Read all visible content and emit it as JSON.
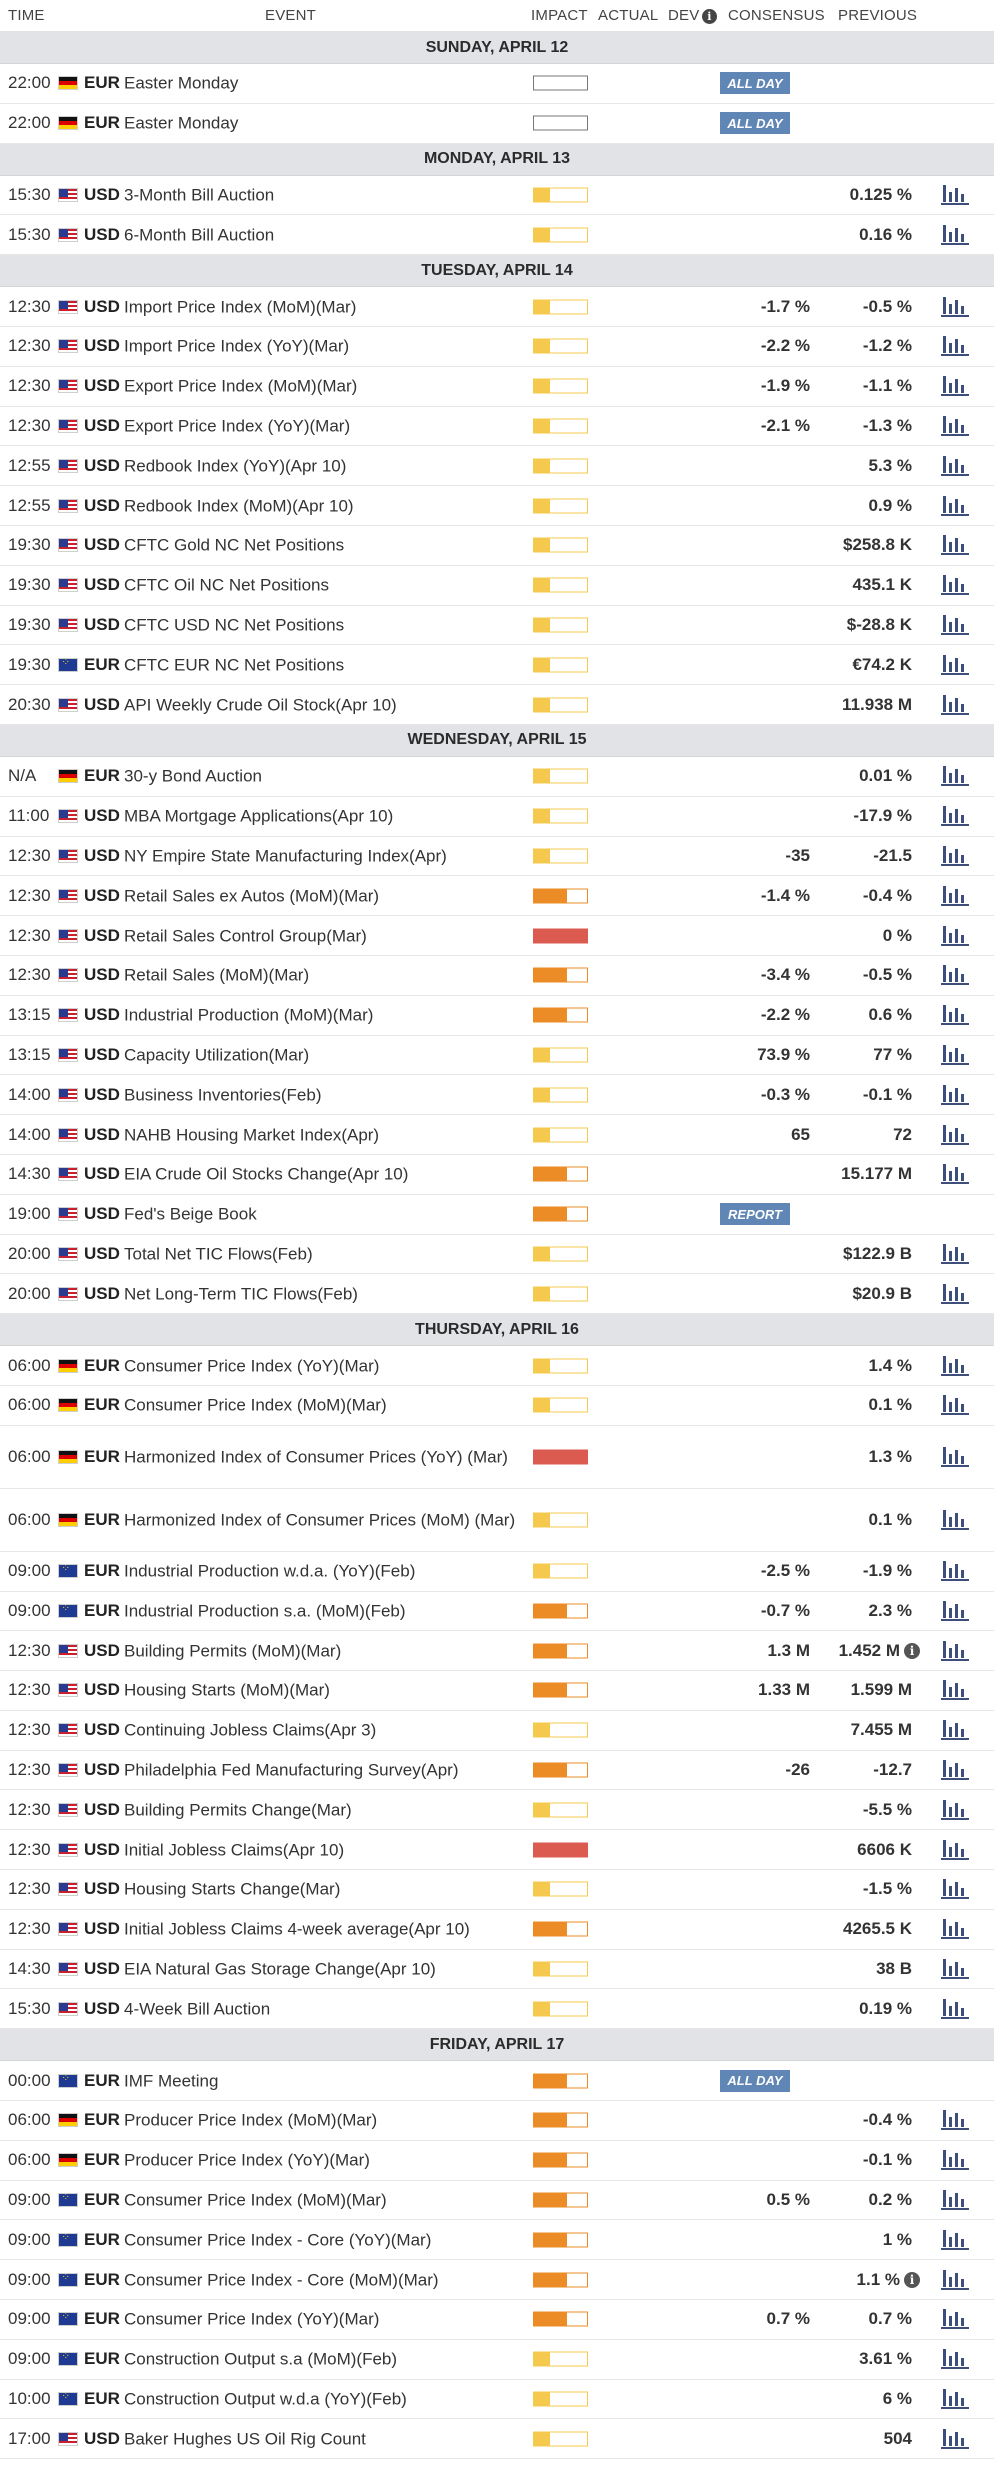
{
  "header": {
    "time": "TIME",
    "event": "EVENT",
    "impact": "IMPACT",
    "actual": "ACTUAL",
    "dev": "DEV",
    "consensus": "CONSENSUS",
    "previous": "PREVIOUS"
  },
  "days": [
    {
      "label": "SUNDAY, APRIL 12",
      "events": [
        {
          "time": "22:00",
          "flag": "de",
          "cur": "EUR",
          "name": "Easter Monday",
          "impact": 0,
          "tag": "ALL DAY",
          "cons": "",
          "prev": "",
          "chart": false
        },
        {
          "time": "22:00",
          "flag": "de",
          "cur": "EUR",
          "name": "Easter Monday",
          "impact": 0,
          "tag": "ALL DAY",
          "cons": "",
          "prev": "",
          "chart": false
        }
      ]
    },
    {
      "label": "MONDAY, APRIL 13",
      "events": [
        {
          "time": "15:30",
          "flag": "us",
          "cur": "USD",
          "name": "3-Month Bill Auction",
          "impact": 1,
          "tag": "",
          "cons": "",
          "prev": "0.125 %",
          "chart": true
        },
        {
          "time": "15:30",
          "flag": "us",
          "cur": "USD",
          "name": "6-Month Bill Auction",
          "impact": 1,
          "tag": "",
          "cons": "",
          "prev": "0.16 %",
          "chart": true
        }
      ]
    },
    {
      "label": "TUESDAY, APRIL 14",
      "events": [
        {
          "time": "12:30",
          "flag": "us",
          "cur": "USD",
          "name": "Import Price Index (MoM)(Mar)",
          "impact": 1,
          "tag": "",
          "cons": "-1.7 %",
          "prev": "-0.5 %",
          "chart": true
        },
        {
          "time": "12:30",
          "flag": "us",
          "cur": "USD",
          "name": "Import Price Index (YoY)(Mar)",
          "impact": 1,
          "tag": "",
          "cons": "-2.2 %",
          "prev": "-1.2 %",
          "chart": true
        },
        {
          "time": "12:30",
          "flag": "us",
          "cur": "USD",
          "name": "Export Price Index (MoM)(Mar)",
          "impact": 1,
          "tag": "",
          "cons": "-1.9 %",
          "prev": "-1.1 %",
          "chart": true
        },
        {
          "time": "12:30",
          "flag": "us",
          "cur": "USD",
          "name": "Export Price Index (YoY)(Mar)",
          "impact": 1,
          "tag": "",
          "cons": "-2.1 %",
          "prev": "-1.3 %",
          "chart": true
        },
        {
          "time": "12:55",
          "flag": "us",
          "cur": "USD",
          "name": "Redbook Index (YoY)(Apr 10)",
          "impact": 1,
          "tag": "",
          "cons": "",
          "prev": "5.3 %",
          "chart": true
        },
        {
          "time": "12:55",
          "flag": "us",
          "cur": "USD",
          "name": "Redbook Index (MoM)(Apr 10)",
          "impact": 1,
          "tag": "",
          "cons": "",
          "prev": "0.9 %",
          "chart": true
        },
        {
          "time": "19:30",
          "flag": "us",
          "cur": "USD",
          "name": "CFTC Gold NC Net Positions",
          "impact": 1,
          "tag": "",
          "cons": "",
          "prev": "$258.8 K",
          "chart": true
        },
        {
          "time": "19:30",
          "flag": "us",
          "cur": "USD",
          "name": "CFTC Oil NC Net Positions",
          "impact": 1,
          "tag": "",
          "cons": "",
          "prev": "435.1 K",
          "chart": true
        },
        {
          "time": "19:30",
          "flag": "us",
          "cur": "USD",
          "name": "CFTC USD NC Net Positions",
          "impact": 1,
          "tag": "",
          "cons": "",
          "prev": "$-28.8 K",
          "chart": true
        },
        {
          "time": "19:30",
          "flag": "eu",
          "cur": "EUR",
          "name": "CFTC EUR NC Net Positions",
          "impact": 1,
          "tag": "",
          "cons": "",
          "prev": "€74.2 K",
          "chart": true
        },
        {
          "time": "20:30",
          "flag": "us",
          "cur": "USD",
          "name": "API Weekly Crude Oil Stock(Apr 10)",
          "impact": 1,
          "tag": "",
          "cons": "",
          "prev": "11.938 M",
          "chart": true
        }
      ]
    },
    {
      "label": "WEDNESDAY, APRIL 15",
      "events": [
        {
          "time": "N/A",
          "flag": "de",
          "cur": "EUR",
          "name": "30-y Bond Auction",
          "impact": 1,
          "tag": "",
          "cons": "",
          "prev": "0.01 %",
          "chart": true
        },
        {
          "time": "11:00",
          "flag": "us",
          "cur": "USD",
          "name": "MBA Mortgage Applications(Apr 10)",
          "impact": 1,
          "tag": "",
          "cons": "",
          "prev": "-17.9 %",
          "chart": true
        },
        {
          "time": "12:30",
          "flag": "us",
          "cur": "USD",
          "name": "NY Empire State Manufacturing Index(Apr)",
          "impact": 1,
          "tag": "",
          "cons": "-35",
          "prev": "-21.5",
          "chart": true
        },
        {
          "time": "12:30",
          "flag": "us",
          "cur": "USD",
          "name": "Retail Sales ex Autos (MoM)(Mar)",
          "impact": 2,
          "tag": "",
          "cons": "-1.4 %",
          "prev": "-0.4 %",
          "chart": true
        },
        {
          "time": "12:30",
          "flag": "us",
          "cur": "USD",
          "name": "Retail Sales Control Group(Mar)",
          "impact": 3,
          "tag": "",
          "cons": "",
          "prev": "0 %",
          "chart": true
        },
        {
          "time": "12:30",
          "flag": "us",
          "cur": "USD",
          "name": "Retail Sales (MoM)(Mar)",
          "impact": 2,
          "tag": "",
          "cons": "-3.4 %",
          "prev": "-0.5 %",
          "chart": true
        },
        {
          "time": "13:15",
          "flag": "us",
          "cur": "USD",
          "name": "Industrial Production (MoM)(Mar)",
          "impact": 2,
          "tag": "",
          "cons": "-2.2 %",
          "prev": "0.6 %",
          "chart": true
        },
        {
          "time": "13:15",
          "flag": "us",
          "cur": "USD",
          "name": "Capacity Utilization(Mar)",
          "impact": 1,
          "tag": "",
          "cons": "73.9 %",
          "prev": "77 %",
          "chart": true
        },
        {
          "time": "14:00",
          "flag": "us",
          "cur": "USD",
          "name": "Business Inventories(Feb)",
          "impact": 1,
          "tag": "",
          "cons": "-0.3 %",
          "prev": "-0.1 %",
          "chart": true
        },
        {
          "time": "14:00",
          "flag": "us",
          "cur": "USD",
          "name": "NAHB Housing Market Index(Apr)",
          "impact": 1,
          "tag": "",
          "cons": "65",
          "prev": "72",
          "chart": true
        },
        {
          "time": "14:30",
          "flag": "us",
          "cur": "USD",
          "name": "EIA Crude Oil Stocks Change(Apr 10)",
          "impact": 2,
          "tag": "",
          "cons": "",
          "prev": "15.177 M",
          "chart": true
        },
        {
          "time": "19:00",
          "flag": "us",
          "cur": "USD",
          "name": "Fed's Beige Book",
          "impact": 2,
          "tag": "REPORT",
          "cons": "",
          "prev": "",
          "chart": false
        },
        {
          "time": "20:00",
          "flag": "us",
          "cur": "USD",
          "name": "Total Net TIC Flows(Feb)",
          "impact": 1,
          "tag": "",
          "cons": "",
          "prev": "$122.9 B",
          "chart": true
        },
        {
          "time": "20:00",
          "flag": "us",
          "cur": "USD",
          "name": "Net Long-Term TIC Flows(Feb)",
          "impact": 1,
          "tag": "",
          "cons": "",
          "prev": "$20.9 B",
          "chart": true
        }
      ]
    },
    {
      "label": "THURSDAY, APRIL 16",
      "events": [
        {
          "time": "06:00",
          "flag": "de",
          "cur": "EUR",
          "name": "Consumer Price Index (YoY)(Mar)",
          "impact": 1,
          "tag": "",
          "cons": "",
          "prev": "1.4 %",
          "chart": true
        },
        {
          "time": "06:00",
          "flag": "de",
          "cur": "EUR",
          "name": "Consumer Price Index (MoM)(Mar)",
          "impact": 1,
          "tag": "",
          "cons": "",
          "prev": "0.1 %",
          "chart": true
        },
        {
          "time": "06:00",
          "flag": "de",
          "cur": "EUR",
          "name": "Harmonized Index of Consumer Prices (YoY) (Mar)",
          "impact": 3,
          "tag": "",
          "cons": "",
          "prev": "1.3 %",
          "chart": true,
          "tall": true
        },
        {
          "time": "06:00",
          "flag": "de",
          "cur": "EUR",
          "name": "Harmonized Index of Consumer Prices (MoM) (Mar)",
          "impact": 1,
          "tag": "",
          "cons": "",
          "prev": "0.1 %",
          "chart": true,
          "tall": true
        },
        {
          "time": "09:00",
          "flag": "eu",
          "cur": "EUR",
          "name": "Industrial Production w.d.a. (YoY)(Feb)",
          "impact": 1,
          "tag": "",
          "cons": "-2.5 %",
          "prev": "-1.9 %",
          "chart": true
        },
        {
          "time": "09:00",
          "flag": "eu",
          "cur": "EUR",
          "name": "Industrial Production s.a. (MoM)(Feb)",
          "impact": 2,
          "tag": "",
          "cons": "-0.7 %",
          "prev": "2.3 %",
          "chart": true
        },
        {
          "time": "12:30",
          "flag": "us",
          "cur": "USD",
          "name": "Building Permits (MoM)(Mar)",
          "impact": 2,
          "tag": "",
          "cons": "1.3 M",
          "prev": "1.452 M",
          "chart": true,
          "info": true
        },
        {
          "time": "12:30",
          "flag": "us",
          "cur": "USD",
          "name": "Housing Starts (MoM)(Mar)",
          "impact": 2,
          "tag": "",
          "cons": "1.33 M",
          "prev": "1.599 M",
          "chart": true
        },
        {
          "time": "12:30",
          "flag": "us",
          "cur": "USD",
          "name": "Continuing Jobless Claims(Apr 3)",
          "impact": 1,
          "tag": "",
          "cons": "",
          "prev": "7.455 M",
          "chart": true
        },
        {
          "time": "12:30",
          "flag": "us",
          "cur": "USD",
          "name": "Philadelphia Fed Manufacturing Survey(Apr)",
          "impact": 2,
          "tag": "",
          "cons": "-26",
          "prev": "-12.7",
          "chart": true
        },
        {
          "time": "12:30",
          "flag": "us",
          "cur": "USD",
          "name": "Building Permits Change(Mar)",
          "impact": 1,
          "tag": "",
          "cons": "",
          "prev": "-5.5 %",
          "chart": true
        },
        {
          "time": "12:30",
          "flag": "us",
          "cur": "USD",
          "name": "Initial Jobless Claims(Apr 10)",
          "impact": 3,
          "tag": "",
          "cons": "",
          "prev": "6606 K",
          "chart": true
        },
        {
          "time": "12:30",
          "flag": "us",
          "cur": "USD",
          "name": "Housing Starts Change(Mar)",
          "impact": 1,
          "tag": "",
          "cons": "",
          "prev": "-1.5 %",
          "chart": true
        },
        {
          "time": "12:30",
          "flag": "us",
          "cur": "USD",
          "name": "Initial Jobless Claims 4-week average(Apr 10)",
          "impact": 2,
          "tag": "",
          "cons": "",
          "prev": "4265.5 K",
          "chart": true
        },
        {
          "time": "14:30",
          "flag": "us",
          "cur": "USD",
          "name": "EIA Natural Gas Storage Change(Apr 10)",
          "impact": 1,
          "tag": "",
          "cons": "",
          "prev": "38 B",
          "chart": true
        },
        {
          "time": "15:30",
          "flag": "us",
          "cur": "USD",
          "name": "4-Week Bill Auction",
          "impact": 1,
          "tag": "",
          "cons": "",
          "prev": "0.19 %",
          "chart": true
        }
      ]
    },
    {
      "label": "FRIDAY, APRIL 17",
      "events": [
        {
          "time": "00:00",
          "flag": "eu",
          "cur": "EUR",
          "name": "IMF Meeting",
          "impact": 2,
          "tag": "ALL DAY",
          "cons": "",
          "prev": "",
          "chart": false
        },
        {
          "time": "06:00",
          "flag": "de",
          "cur": "EUR",
          "name": "Producer Price Index (MoM)(Mar)",
          "impact": 2,
          "tag": "",
          "cons": "",
          "prev": "-0.4 %",
          "chart": true
        },
        {
          "time": "06:00",
          "flag": "de",
          "cur": "EUR",
          "name": "Producer Price Index (YoY)(Mar)",
          "impact": 2,
          "tag": "",
          "cons": "",
          "prev": "-0.1 %",
          "chart": true
        },
        {
          "time": "09:00",
          "flag": "eu",
          "cur": "EUR",
          "name": "Consumer Price Index (MoM)(Mar)",
          "impact": 2,
          "tag": "",
          "cons": "0.5 %",
          "prev": "0.2 %",
          "chart": true
        },
        {
          "time": "09:00",
          "flag": "eu",
          "cur": "EUR",
          "name": "Consumer Price Index - Core (YoY)(Mar)",
          "impact": 2,
          "tag": "",
          "cons": "",
          "prev": "1 %",
          "chart": true
        },
        {
          "time": "09:00",
          "flag": "eu",
          "cur": "EUR",
          "name": "Consumer Price Index - Core (MoM)(Mar)",
          "impact": 2,
          "tag": "",
          "cons": "",
          "prev": "1.1 %",
          "chart": true,
          "info": true
        },
        {
          "time": "09:00",
          "flag": "eu",
          "cur": "EUR",
          "name": "Consumer Price Index (YoY)(Mar)",
          "impact": 2,
          "tag": "",
          "cons": "0.7 %",
          "prev": "0.7 %",
          "chart": true
        },
        {
          "time": "09:00",
          "flag": "eu",
          "cur": "EUR",
          "name": "Construction Output s.a (MoM)(Feb)",
          "impact": 1,
          "tag": "",
          "cons": "",
          "prev": "3.61 %",
          "chart": true
        },
        {
          "time": "10:00",
          "flag": "eu",
          "cur": "EUR",
          "name": "Construction Output w.d.a (YoY)(Feb)",
          "impact": 1,
          "tag": "",
          "cons": "",
          "prev": "6 %",
          "chart": true
        },
        {
          "time": "17:00",
          "flag": "us",
          "cur": "USD",
          "name": "Baker Hughes US Oil Rig Count",
          "impact": 1,
          "tag": "",
          "cons": "",
          "prev": "504",
          "chart": true
        }
      ]
    }
  ],
  "colors": {
    "impact_low": "#f5c94d",
    "impact_medium": "#ec8c26",
    "impact_high": "#dc5b50",
    "tag_bg": "#5f86b4",
    "chart_icon": "#3d4e7a",
    "day_bg": "#e1e3e7"
  },
  "icons": {
    "dev_info": "info-icon",
    "chart": "bar-chart-icon",
    "info": "info-icon"
  }
}
